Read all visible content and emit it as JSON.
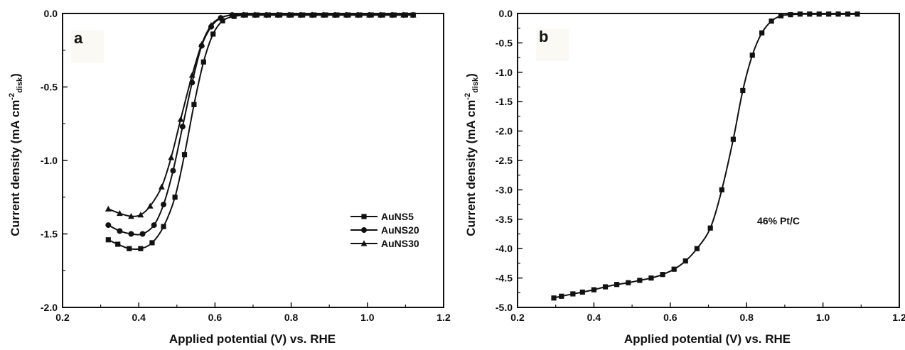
{
  "chart_data": [
    {
      "type": "line",
      "panel_label": "a",
      "xlabel": "Applied potential (V) vs. RHE",
      "ylabel": "Current density (mA cm",
      "ylabel_sup": "-2",
      "ylabel_sub": "disk",
      "ylabel_close": ")",
      "xlim": [
        0.2,
        1.2
      ],
      "ylim": [
        -2.0,
        0.0
      ],
      "xticks": [
        0.2,
        0.4,
        0.6,
        0.8,
        1.0,
        1.2
      ],
      "xtick_labels": [
        "0.2",
        "0.4",
        "0.6",
        "0.8",
        "1.0",
        "1.2"
      ],
      "yticks": [
        0.0,
        -0.5,
        -1.0,
        -1.5,
        -2.0
      ],
      "ytick_labels": [
        "0.0",
        "-0.5",
        "-1.0",
        "-1.5",
        "-2.0"
      ],
      "legend_position": "center-right",
      "series": [
        {
          "name": "AuNS5",
          "marker": "square",
          "x": [
            0.32,
            0.345,
            0.375,
            0.405,
            0.435,
            0.465,
            0.495,
            0.52,
            0.545,
            0.57,
            0.595,
            0.62,
            0.65,
            0.68,
            0.71,
            0.74,
            0.77,
            0.8,
            0.83,
            0.86,
            0.89,
            0.92,
            0.95,
            0.98,
            1.01,
            1.04,
            1.07,
            1.1,
            1.12
          ],
          "y": [
            -1.54,
            -1.57,
            -1.6,
            -1.6,
            -1.56,
            -1.45,
            -1.25,
            -0.96,
            -0.62,
            -0.33,
            -0.14,
            -0.05,
            -0.02,
            -0.01,
            -0.01,
            -0.01,
            -0.01,
            -0.01,
            -0.01,
            -0.01,
            -0.01,
            -0.01,
            -0.01,
            -0.01,
            -0.01,
            -0.01,
            -0.01,
            -0.01,
            -0.01
          ]
        },
        {
          "name": "AuNS20",
          "marker": "circle",
          "x": [
            0.32,
            0.35,
            0.38,
            0.41,
            0.44,
            0.465,
            0.49,
            0.515,
            0.54,
            0.565,
            0.59,
            0.615,
            0.645,
            0.675,
            0.705,
            0.735,
            0.765,
            0.795,
            0.825,
            0.855,
            0.885,
            0.915,
            0.945,
            0.975,
            1.005,
            1.035,
            1.065,
            1.095,
            1.12
          ],
          "y": [
            -1.44,
            -1.48,
            -1.5,
            -1.5,
            -1.44,
            -1.3,
            -1.07,
            -0.77,
            -0.47,
            -0.22,
            -0.09,
            -0.03,
            -0.01,
            -0.01,
            -0.01,
            -0.01,
            -0.01,
            -0.01,
            -0.01,
            -0.01,
            -0.01,
            -0.01,
            -0.01,
            -0.01,
            -0.01,
            -0.01,
            -0.01,
            -0.01,
            -0.01
          ]
        },
        {
          "name": "AuNS30",
          "marker": "triangle",
          "x": [
            0.32,
            0.35,
            0.38,
            0.405,
            0.43,
            0.46,
            0.485,
            0.51,
            0.54,
            0.565,
            0.59,
            0.615,
            0.645,
            0.675,
            0.705,
            0.735,
            0.765,
            0.795,
            0.825,
            0.855,
            0.885,
            0.915,
            0.945,
            0.975,
            1.005,
            1.035,
            1.065,
            1.095,
            1.12
          ],
          "y": [
            -1.33,
            -1.36,
            -1.38,
            -1.37,
            -1.31,
            -1.18,
            -0.98,
            -0.72,
            -0.42,
            -0.21,
            -0.08,
            -0.03,
            -0.01,
            -0.01,
            -0.01,
            -0.01,
            -0.01,
            -0.01,
            -0.01,
            -0.01,
            -0.01,
            -0.01,
            -0.01,
            -0.01,
            -0.01,
            -0.01,
            -0.01,
            -0.01,
            -0.01
          ]
        }
      ]
    },
    {
      "type": "line",
      "panel_label": "b",
      "xlabel": "Applied potential (V) vs. RHE",
      "ylabel": "Current density (mA cm",
      "ylabel_sup": "-2",
      "ylabel_sub": "disk",
      "ylabel_close": ")",
      "xlim": [
        0.2,
        1.2
      ],
      "ylim": [
        -5.0,
        0.0
      ],
      "xticks": [
        0.2,
        0.4,
        0.6,
        0.8,
        1.0,
        1.2
      ],
      "xtick_labels": [
        "0.2",
        "0.4",
        "0.6",
        "0.8",
        "1.0",
        "1.2"
      ],
      "yticks": [
        0.0,
        -0.5,
        -1.0,
        -1.5,
        -2.0,
        -2.5,
        -3.0,
        -3.5,
        -4.0,
        -4.5,
        -5.0
      ],
      "ytick_labels": [
        "0.0",
        "-0.5",
        "-1.0",
        "-1.5",
        "-2.0",
        "-2.5",
        "-3.0",
        "-3.5",
        "-4.0",
        "-4.5",
        "-5.0"
      ],
      "annotation": "46% Pt/C",
      "series": [
        {
          "name": "",
          "marker": "square",
          "x": [
            0.295,
            0.315,
            0.345,
            0.37,
            0.4,
            0.43,
            0.46,
            0.49,
            0.52,
            0.55,
            0.58,
            0.61,
            0.64,
            0.67,
            0.705,
            0.735,
            0.765,
            0.79,
            0.815,
            0.84,
            0.865,
            0.89,
            0.915,
            0.94,
            0.965,
            0.99,
            1.015,
            1.04,
            1.065,
            1.09
          ],
          "y": [
            -4.84,
            -4.81,
            -4.77,
            -4.74,
            -4.7,
            -4.65,
            -4.61,
            -4.58,
            -4.54,
            -4.5,
            -4.44,
            -4.35,
            -4.21,
            -4.0,
            -3.65,
            -3.0,
            -2.14,
            -1.31,
            -0.71,
            -0.33,
            -0.13,
            -0.04,
            -0.02,
            -0.01,
            -0.01,
            -0.01,
            -0.01,
            -0.01,
            -0.01,
            -0.01
          ]
        }
      ]
    }
  ]
}
